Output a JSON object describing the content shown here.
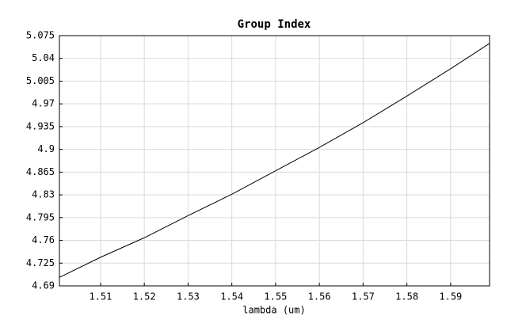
{
  "chart_data": {
    "type": "line",
    "title": "Group Index",
    "x_label": "lambda (um)",
    "x": [
      1.5006,
      1.51,
      1.52,
      1.53,
      1.54,
      1.55,
      1.56,
      1.57,
      1.58,
      1.59,
      1.5989
    ],
    "series": [
      {
        "name": "Group Index",
        "color": "#000000",
        "values": [
          4.703,
          4.734,
          4.764,
          4.798,
          4.831,
          4.867,
          4.903,
          4.941,
          4.982,
          5.024,
          5.063
        ]
      }
    ],
    "xlim": [
      1.5006,
      1.5989
    ],
    "xticks": [
      1.51,
      1.52,
      1.53,
      1.54,
      1.55,
      1.56,
      1.57,
      1.58,
      1.59
    ],
    "ylim": [
      4.69,
      5.075
    ],
    "yticks": [
      4.69,
      4.725,
      4.76,
      4.795,
      4.83,
      4.865,
      4.9,
      4.935,
      4.97,
      5.005,
      5.04,
      5.075
    ],
    "grid": true
  }
}
